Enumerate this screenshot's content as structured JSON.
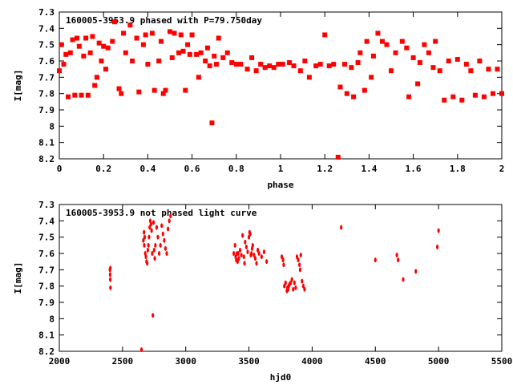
{
  "chart_data": [
    {
      "type": "scatter",
      "title": "160005-3953.9 phased with P=79.750day",
      "xlabel": "phase",
      "ylabel": "I[mag]",
      "xlim": [
        0,
        2
      ],
      "ylim": [
        8.2,
        7.3
      ],
      "y_inverted": true,
      "x_ticks": [
        "0",
        "0.2",
        "0.4",
        "0.6",
        "0.8",
        "1",
        "1.2",
        "1.4",
        "1.6",
        "1.8",
        "2"
      ],
      "y_ticks": [
        "7.3",
        "7.4",
        "7.5",
        "7.6",
        "7.7",
        "7.8",
        "7.9",
        "8",
        "8.1",
        "8.2"
      ],
      "grid": false,
      "marker_color": "#ff0000",
      "series": [
        {
          "x": [
            0.0,
            0.01,
            0.02,
            0.03,
            0.04,
            0.05,
            0.06,
            0.07,
            0.08,
            0.09,
            0.1,
            0.11,
            0.12,
            0.13,
            0.14,
            0.15,
            0.16,
            0.17,
            0.18,
            0.19,
            0.2,
            0.21,
            0.22,
            0.24,
            0.25,
            0.27,
            0.28,
            0.29,
            0.3,
            0.32,
            0.33,
            0.35,
            0.36,
            0.38,
            0.39,
            0.4,
            0.42,
            0.43,
            0.45,
            0.46,
            0.47,
            0.48,
            0.5,
            0.51,
            0.52,
            0.54,
            0.55,
            0.56,
            0.57,
            0.58,
            0.59,
            0.6,
            0.62,
            0.63,
            0.64,
            0.66,
            0.67,
            0.68,
            0.69,
            0.7,
            0.71,
            0.72,
            0.74,
            0.76,
            0.78,
            0.8,
            0.82,
            0.85,
            0.87,
            0.89,
            0.91,
            0.93,
            0.95,
            0.97,
            0.99,
            1.01,
            1.04,
            1.06,
            1.09,
            1.11,
            1.13,
            1.16,
            1.18,
            1.2,
            1.22,
            1.24,
            1.26,
            1.27,
            1.29,
            1.3,
            1.32,
            1.33,
            1.35,
            1.36,
            1.38,
            1.39,
            1.41,
            1.42,
            1.44,
            1.46,
            1.48,
            1.5,
            1.52,
            1.55,
            1.57,
            1.58,
            1.6,
            1.62,
            1.63,
            1.65,
            1.67,
            1.69,
            1.7,
            1.72,
            1.74,
            1.76,
            1.78,
            1.8,
            1.82,
            1.84,
            1.86,
            1.88,
            1.9,
            1.92,
            1.94,
            1.96,
            1.98,
            2.0
          ],
          "y": [
            7.66,
            7.5,
            7.62,
            7.56,
            7.82,
            7.55,
            7.47,
            7.81,
            7.46,
            7.51,
            7.81,
            7.57,
            7.46,
            7.81,
            7.55,
            7.45,
            7.75,
            7.7,
            7.49,
            7.6,
            7.51,
            7.65,
            7.52,
            7.48,
            7.36,
            7.77,
            7.8,
            7.43,
            7.55,
            7.38,
            7.6,
            7.46,
            7.79,
            7.5,
            7.44,
            7.62,
            7.43,
            7.78,
            7.6,
            7.48,
            7.8,
            7.78,
            7.42,
            7.58,
            7.43,
            7.55,
            7.44,
            7.54,
            7.78,
            7.5,
            7.56,
            7.44,
            7.56,
            7.7,
            7.55,
            7.6,
            7.52,
            7.63,
            7.98,
            7.57,
            7.62,
            7.46,
            7.58,
            7.55,
            7.61,
            7.62,
            7.62,
            7.65,
            7.58,
            7.66,
            7.62,
            7.64,
            7.63,
            7.64,
            7.62,
            7.62,
            7.61,
            7.63,
            7.66,
            7.6,
            7.7,
            7.63,
            7.62,
            7.44,
            7.63,
            7.62,
            8.19,
            7.76,
            7.62,
            7.8,
            7.64,
            7.82,
            7.61,
            7.55,
            7.78,
            7.48,
            7.7,
            7.57,
            7.43,
            7.48,
            7.5,
            7.66,
            7.55,
            7.48,
            7.52,
            7.82,
            7.58,
            7.74,
            7.61,
            7.5,
            7.55,
            7.64,
            7.48,
            7.66,
            7.84,
            7.6,
            7.82,
            7.59,
            7.84,
            7.62,
            7.66,
            7.81,
            7.6,
            7.82,
            7.65,
            7.8,
            7.65,
            7.8
          ]
        }
      ]
    },
    {
      "type": "scatter",
      "title": "160005-3953.9 not phased light curve",
      "xlabel": "hjd0",
      "ylabel": "I[mag]",
      "xlim": [
        2000,
        5500
      ],
      "ylim": [
        8.2,
        7.3
      ],
      "y_inverted": true,
      "x_ticks": [
        "2000",
        "2500",
        "3000",
        "3500",
        "4000",
        "4500",
        "5000",
        "5500"
      ],
      "y_ticks": [
        "7.3",
        "7.4",
        "7.5",
        "7.6",
        "7.7",
        "7.8",
        "7.9",
        "8",
        "8.1",
        "8.2"
      ],
      "grid": false,
      "marker_color": "#ff0000",
      "series": [
        {
          "x": [
            2400,
            2402,
            2403,
            2404,
            2405,
            2650,
            2665,
            2670,
            2672,
            2675,
            2680,
            2685,
            2690,
            2695,
            2700,
            2705,
            2710,
            2715,
            2720,
            2725,
            2730,
            2735,
            2740,
            2745,
            2750,
            2755,
            2760,
            2770,
            2780,
            2790,
            2800,
            2810,
            2820,
            2830,
            2840,
            2850,
            2860,
            2870,
            2880,
            3380,
            3390,
            3395,
            3400,
            3405,
            3410,
            3415,
            3420,
            3430,
            3440,
            3450,
            3460,
            3465,
            3470,
            3480,
            3490,
            3500,
            3505,
            3510,
            3515,
            3520,
            3525,
            3530,
            3540,
            3550,
            3560,
            3570,
            3580,
            3600,
            3620,
            3640,
            3760,
            3770,
            3775,
            3780,
            3790,
            3800,
            3805,
            3810,
            3815,
            3820,
            3830,
            3840,
            3850,
            3860,
            3870,
            3880,
            3890,
            3900,
            3905,
            3910,
            3920,
            3930,
            3940,
            4230,
            4500,
            4670,
            4680,
            4720,
            4820,
            4990,
            5000
          ],
          "y": [
            7.7,
            7.73,
            7.76,
            7.69,
            7.81,
            8.19,
            7.52,
            7.47,
            7.55,
            7.5,
            7.6,
            7.62,
            7.65,
            7.66,
            7.58,
            7.55,
            7.5,
            7.44,
            7.4,
            7.42,
            7.46,
            7.6,
            7.98,
            7.41,
            7.58,
            7.63,
            7.55,
            7.44,
            7.5,
            7.6,
            7.55,
            7.43,
            7.48,
            7.52,
            7.57,
            7.6,
            7.45,
            7.4,
            7.37,
            7.6,
            7.55,
            7.62,
            7.64,
            7.6,
            7.65,
            7.6,
            7.63,
            7.58,
            7.61,
            7.49,
            7.62,
            7.66,
            7.53,
            7.56,
            7.59,
            7.5,
            7.47,
            7.48,
            7.61,
            7.6,
            7.57,
            7.55,
            7.61,
            7.63,
            7.66,
            7.58,
            7.6,
            7.62,
            7.59,
            7.65,
            7.62,
            7.64,
            7.67,
            7.8,
            7.78,
            7.83,
            7.81,
            7.82,
            7.8,
            7.79,
            7.78,
            7.76,
            7.82,
            7.78,
            7.81,
            7.62,
            7.64,
            7.67,
            7.7,
            7.61,
            7.77,
            7.8,
            7.82,
            7.44,
            7.64,
            7.61,
            7.64,
            7.76,
            7.71,
            7.56,
            7.46
          ]
        }
      ]
    }
  ]
}
